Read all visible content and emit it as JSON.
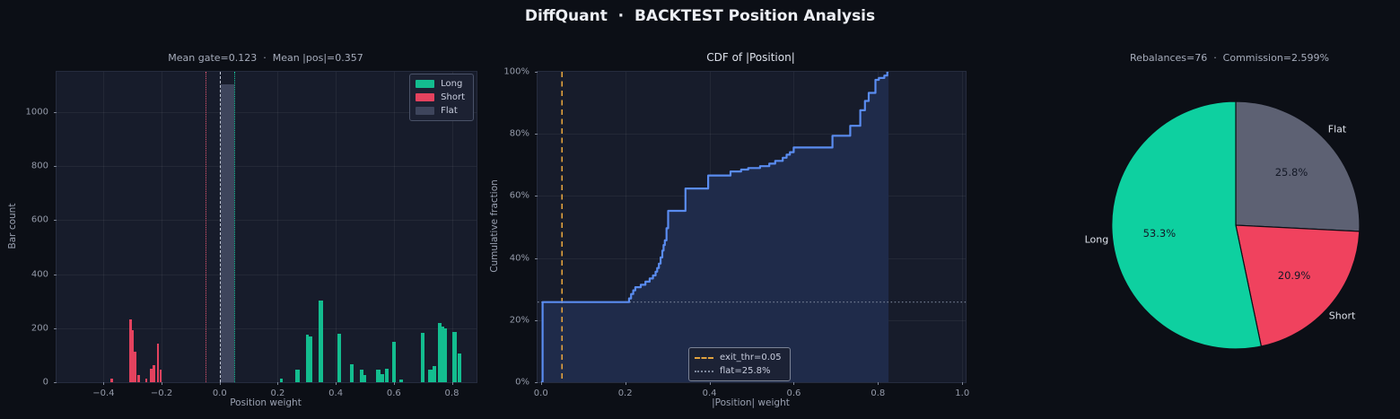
{
  "header": {
    "title": "DiffQuant  ·  BACKTEST Position Analysis"
  },
  "colors": {
    "background": "#0c0f16",
    "plot_background": "#171c2b",
    "long_green": "#13bd8f",
    "short_red": "#e4425e",
    "flat_slate": "#3e455c",
    "pie_long_green": "#0ed0a0",
    "pie_short_red": "#f0425e",
    "pie_flat_gray": "#5d6173",
    "cdf_line_blue": "#5a8cf0",
    "cdf_fill_navy": "#1f2b4a",
    "exit_thr_orange": "#e2a23e"
  },
  "chart_data": [
    {
      "id": "position-histogram",
      "type": "bar",
      "title": "Mean gate=0.123  ·  Mean |pos|=0.357",
      "xlabel": "Position weight",
      "ylabel": "Bar count",
      "xlim": [
        -0.562,
        0.885
      ],
      "ylim": [
        0,
        1150
      ],
      "grid": true,
      "legend_position": "upper right",
      "xticks": [
        {
          "v": -0.4,
          "label": "−0.4"
        },
        {
          "v": -0.2,
          "label": "−0.2"
        },
        {
          "v": 0.0,
          "label": "0.0"
        },
        {
          "v": 0.2,
          "label": "0.2"
        },
        {
          "v": 0.4,
          "label": "0.4"
        },
        {
          "v": 0.6,
          "label": "0.6"
        },
        {
          "v": 0.8,
          "label": "0.8"
        }
      ],
      "yticks": [
        {
          "v": 0,
          "label": "0"
        },
        {
          "v": 200,
          "label": "200"
        },
        {
          "v": 400,
          "label": "400"
        },
        {
          "v": 600,
          "label": "600"
        },
        {
          "v": 800,
          "label": "800"
        },
        {
          "v": 1000,
          "label": "1000"
        }
      ],
      "legend": [
        {
          "label": "Long",
          "color": "#13bd8f"
        },
        {
          "label": "Short",
          "color": "#e4425e"
        },
        {
          "label": "Flat",
          "color": "#3e455c"
        }
      ],
      "vlines": [
        {
          "name": "neg-exit-threshold",
          "x": -0.05,
          "style": "dotted",
          "color": "#e45570"
        },
        {
          "name": "zero-line",
          "x": 0.0,
          "style": "dashed",
          "color": "#c3c9d6"
        },
        {
          "name": "pos-exit-threshold",
          "x": 0.05,
          "style": "dotted",
          "color": "#17c59b"
        }
      ],
      "series": [
        {
          "name": "Long",
          "color": "#13bd8f",
          "bars": [
            [
              0.213,
              12,
              0.01
            ],
            [
              0.268,
              46,
              0.016
            ],
            [
              0.302,
              176,
              0.011
            ],
            [
              0.313,
              168,
              0.011
            ],
            [
              0.348,
              303,
              0.014
            ],
            [
              0.413,
              178,
              0.013
            ],
            [
              0.456,
              68,
              0.012
            ],
            [
              0.489,
              46,
              0.013
            ],
            [
              0.5,
              26,
              0.011
            ],
            [
              0.547,
              48,
              0.015
            ],
            [
              0.56,
              30,
              0.011
            ],
            [
              0.576,
              50,
              0.012
            ],
            [
              0.6,
              150,
              0.013
            ],
            [
              0.626,
              10,
              0.012
            ],
            [
              0.699,
              183,
              0.013
            ],
            [
              0.726,
              46,
              0.013
            ],
            [
              0.74,
              60,
              0.013
            ],
            [
              0.757,
              220,
              0.012
            ],
            [
              0.768,
              206,
              0.01
            ],
            [
              0.778,
              200,
              0.012
            ],
            [
              0.81,
              186,
              0.014
            ],
            [
              0.826,
              108,
              0.013
            ]
          ]
        },
        {
          "name": "Short",
          "color": "#e4425e",
          "bars": [
            [
              -0.372,
              12,
              0.008
            ],
            [
              -0.307,
              231,
              0.008
            ],
            [
              -0.299,
              192,
              0.008
            ],
            [
              -0.291,
              112,
              0.008
            ],
            [
              -0.279,
              28,
              0.008
            ],
            [
              -0.253,
              14,
              0.008
            ],
            [
              -0.236,
              50,
              0.008
            ],
            [
              -0.227,
              62,
              0.008
            ],
            [
              -0.213,
              142,
              0.008
            ],
            [
              -0.203,
              48,
              0.008
            ]
          ]
        },
        {
          "name": "Flat",
          "color": "#3e455c",
          "bars": [
            [
              0.027,
              1103,
              0.046
            ]
          ]
        }
      ]
    },
    {
      "id": "cdf-of-abs-position",
      "type": "line",
      "title": "CDF of |Position|",
      "xlabel": "|Position| weight",
      "ylabel": "Cumulative fraction",
      "xlim": [
        -0.008,
        1.008
      ],
      "ylim": [
        0,
        100
      ],
      "grid": true,
      "line_color": "#5a8cf0",
      "fill_color": "#1f2b4a",
      "xticks": [
        {
          "v": 0.0,
          "label": "0.0"
        },
        {
          "v": 0.2,
          "label": "0.2"
        },
        {
          "v": 0.4,
          "label": "0.4"
        },
        {
          "v": 0.6,
          "label": "0.6"
        },
        {
          "v": 0.8,
          "label": "0.8"
        },
        {
          "v": 1.0,
          "label": "1.0"
        }
      ],
      "yticks": [
        {
          "v": 0,
          "label": "0%"
        },
        {
          "v": 20,
          "label": "20%"
        },
        {
          "v": 40,
          "label": "40%"
        },
        {
          "v": 60,
          "label": "60%"
        },
        {
          "v": 80,
          "label": "80%"
        },
        {
          "v": 100,
          "label": "100%"
        }
      ],
      "steps": [
        [
          0.0,
          0
        ],
        [
          0.004,
          25.8
        ],
        [
          0.205,
          25.8
        ],
        [
          0.209,
          27.0
        ],
        [
          0.214,
          28.4
        ],
        [
          0.219,
          29.6
        ],
        [
          0.224,
          30.6
        ],
        [
          0.237,
          31.4
        ],
        [
          0.248,
          32.4
        ],
        [
          0.258,
          33.4
        ],
        [
          0.266,
          34.4
        ],
        [
          0.272,
          35.6
        ],
        [
          0.276,
          36.8
        ],
        [
          0.28,
          38.2
        ],
        [
          0.284,
          40.2
        ],
        [
          0.288,
          42.4
        ],
        [
          0.291,
          44.2
        ],
        [
          0.294,
          45.7
        ],
        [
          0.298,
          49.6
        ],
        [
          0.302,
          55.2
        ],
        [
          0.343,
          62.4
        ],
        [
          0.397,
          66.6
        ],
        [
          0.45,
          67.9
        ],
        [
          0.475,
          68.5
        ],
        [
          0.492,
          69.0
        ],
        [
          0.52,
          69.6
        ],
        [
          0.542,
          70.4
        ],
        [
          0.556,
          71.3
        ],
        [
          0.574,
          72.3
        ],
        [
          0.583,
          73.3
        ],
        [
          0.591,
          74.1
        ],
        [
          0.6,
          75.6
        ],
        [
          0.692,
          79.4
        ],
        [
          0.734,
          82.6
        ],
        [
          0.758,
          87.6
        ],
        [
          0.769,
          90.6
        ],
        [
          0.778,
          93.2
        ],
        [
          0.794,
          97.4
        ],
        [
          0.802,
          98.0
        ],
        [
          0.815,
          98.8
        ],
        [
          0.822,
          100.0
        ],
        [
          0.825,
          100.0
        ]
      ],
      "vline": {
        "name": "exit-threshold",
        "x": 0.05,
        "label": "exit_thr=0.05",
        "style": "dashed",
        "color": "#e2a23e"
      },
      "hline": {
        "name": "flat-fraction",
        "y": 25.8,
        "label": "flat=25.8%",
        "style": "dotted",
        "color": "#7d879c"
      }
    },
    {
      "id": "position-mix-pie",
      "type": "pie",
      "title": "Rebalances=76  ·  Commission=2.599%",
      "start_angle": "top-clockwise",
      "slices": [
        {
          "label": "Flat",
          "pct": 25.8,
          "pct_label": "25.8%",
          "color": "#5d6173"
        },
        {
          "label": "Short",
          "pct": 20.9,
          "pct_label": "20.9%",
          "color": "#f0425e"
        },
        {
          "label": "Long",
          "pct": 53.3,
          "pct_label": "53.3%",
          "color": "#0ed0a0"
        }
      ]
    }
  ]
}
